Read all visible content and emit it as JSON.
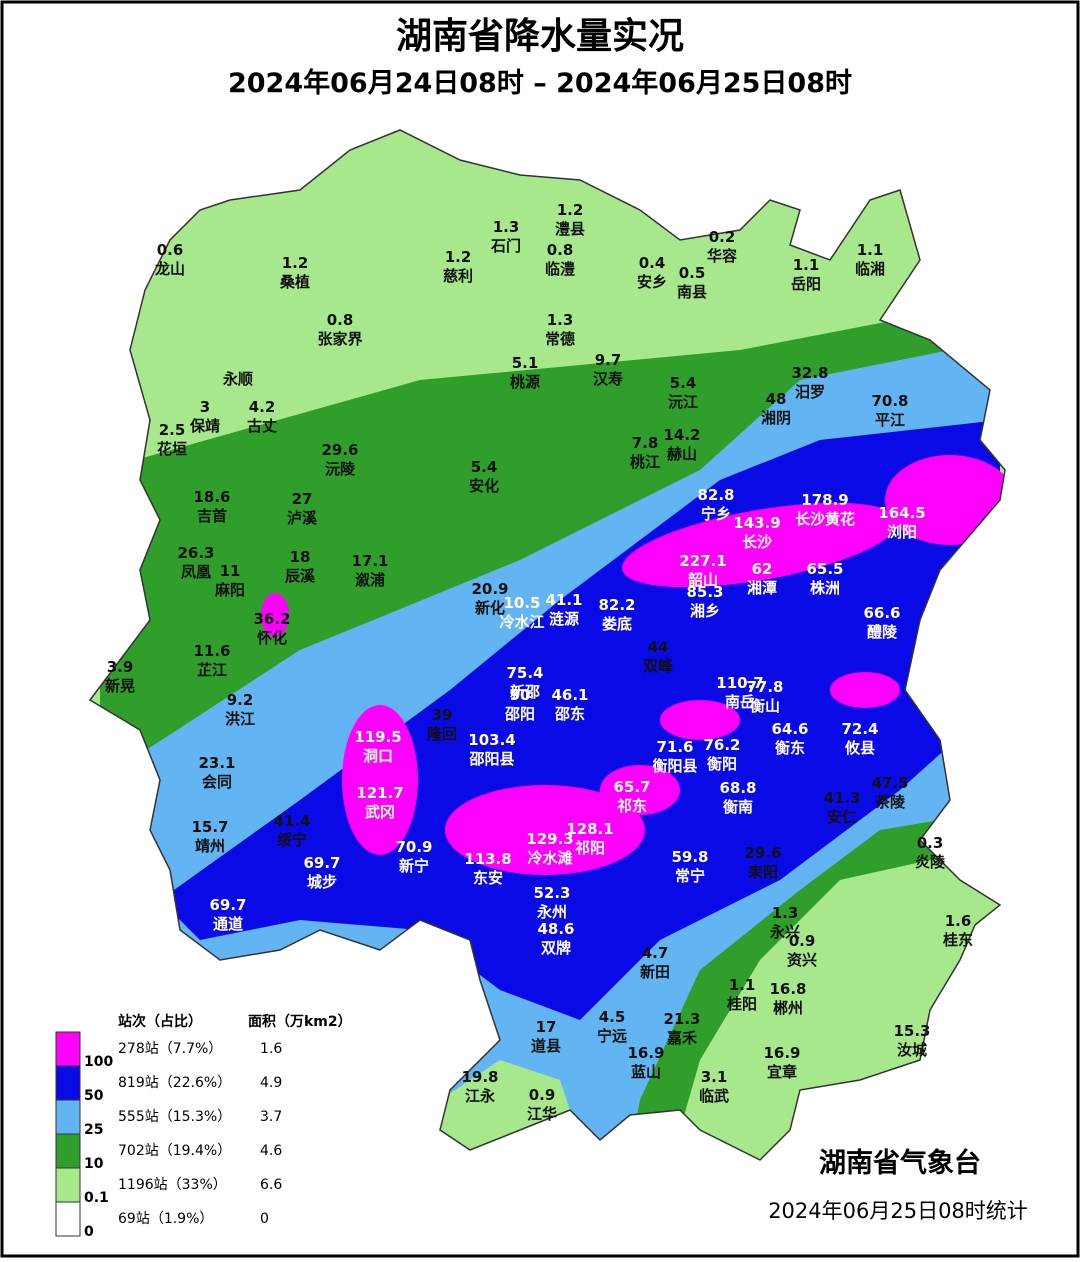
{
  "header": {
    "title": "湖南省降水量实况",
    "subtitle": "2024年06月24日08时 – 2024年06月25日08时"
  },
  "stations": [
    {
      "value": "0.6",
      "name": "龙山"
    },
    {
      "value": "1.2",
      "name": "桑植"
    },
    {
      "value": "1.2",
      "name": "慈利"
    },
    {
      "value": "1.3",
      "name": "石门"
    },
    {
      "value": "1.2",
      "name": "澧县"
    },
    {
      "value": "0.8",
      "name": "临澧"
    },
    {
      "value": "0.4",
      "name": "安乡"
    },
    {
      "value": "0.2",
      "name": "华容"
    },
    {
      "value": "0.5",
      "name": "南县"
    },
    {
      "value": "1.1",
      "name": "岳阳"
    },
    {
      "value": "1.1",
      "name": "临湘"
    },
    {
      "value": "0.8",
      "name": "张家界"
    },
    {
      "value": "1.3",
      "name": "常德"
    },
    {
      "name": "永顺"
    },
    {
      "value": "5.1",
      "name": "桃源"
    },
    {
      "value": "9.7",
      "name": "汉寿"
    },
    {
      "value": "5.4",
      "name": "沅江"
    },
    {
      "value": "32.8",
      "name": "汨罗"
    },
    {
      "value": "48",
      "name": "湘阴"
    },
    {
      "value": "70.8",
      "name": "平江"
    },
    {
      "value": "3",
      "name": "保靖"
    },
    {
      "value": "4.2",
      "name": "古丈"
    },
    {
      "value": "2.5",
      "name": "花垣"
    },
    {
      "value": "29.6",
      "name": "沅陵"
    },
    {
      "value": "7.8",
      "name": "桃江"
    },
    {
      "value": "14.2",
      "name": "赫山"
    },
    {
      "value": "5.4",
      "name": "安化"
    },
    {
      "value": "18.6",
      "name": "吉首"
    },
    {
      "value": "27",
      "name": "泸溪"
    },
    {
      "value": "82.8",
      "name": "宁乡"
    },
    {
      "value": "178.9",
      "name": "长沙黄花"
    },
    {
      "value": "164.5",
      "name": "浏阳"
    },
    {
      "value": "143.9",
      "name": "长沙"
    },
    {
      "value": "26.3",
      "name": "凤凰"
    },
    {
      "value": "11",
      "name": "麻阳"
    },
    {
      "value": "18",
      "name": "辰溪"
    },
    {
      "value": "17.1",
      "name": "溆浦"
    },
    {
      "value": "227.1",
      "name": "韶山"
    },
    {
      "value": "62",
      "name": "湘潭"
    },
    {
      "value": "65.5",
      "name": "株洲"
    },
    {
      "value": "20.9",
      "name": "新化"
    },
    {
      "value": "10.5",
      "name": "冷水江"
    },
    {
      "value": "41.1",
      "name": "涟源"
    },
    {
      "value": "82.2",
      "name": "娄底"
    },
    {
      "value": "85.3",
      "name": "湘乡"
    },
    {
      "value": "36.2",
      "name": "怀化"
    },
    {
      "value": "66.6",
      "name": "醴陵"
    },
    {
      "value": "11.6",
      "name": "芷江"
    },
    {
      "value": "44",
      "name": "双峰"
    },
    {
      "value": "3.9",
      "name": "新晃"
    },
    {
      "value": "75.4",
      "name": "新邵"
    },
    {
      "value": "46.1",
      "name": "邵东"
    },
    {
      "value": "110.7",
      "name": "南岳"
    },
    {
      "value": "77.8",
      "name": "衡山"
    },
    {
      "value": "9.2",
      "name": "洪江"
    },
    {
      "value": "90",
      "name": "邵阳"
    },
    {
      "value": "39",
      "name": "隆回"
    },
    {
      "value": "119.5",
      "name": "洞口"
    },
    {
      "value": "103.4",
      "name": "邵阳县"
    },
    {
      "value": "71.6",
      "name": "衡阳县"
    },
    {
      "value": "76.2",
      "name": "衡阳"
    },
    {
      "value": "64.6",
      "name": "衡东"
    },
    {
      "value": "72.4",
      "name": "攸县"
    },
    {
      "value": "23.1",
      "name": "会同"
    },
    {
      "value": "47.5",
      "name": "茶陵"
    },
    {
      "value": "121.7",
      "name": "武冈"
    },
    {
      "value": "65.7",
      "name": "祁东"
    },
    {
      "value": "68.8",
      "name": "衡南"
    },
    {
      "value": "41.3",
      "name": "安仁"
    },
    {
      "value": "15.7",
      "name": "靖州"
    },
    {
      "value": "41.4",
      "name": "绥宁"
    },
    {
      "value": "129.3",
      "name": "冷水滩"
    },
    {
      "value": "128.1",
      "name": "祁阳"
    },
    {
      "value": "70.9",
      "name": "新宁"
    },
    {
      "value": "0.3",
      "name": "炎陵"
    },
    {
      "value": "69.7",
      "name": "城步"
    },
    {
      "value": "113.8",
      "name": "东安"
    },
    {
      "value": "59.8",
      "name": "常宁"
    },
    {
      "value": "29.6",
      "name": "耒阳"
    },
    {
      "value": "52.3",
      "name": "永州"
    },
    {
      "value": "69.7",
      "name": "通道"
    },
    {
      "value": "1.3",
      "name": "永兴"
    },
    {
      "value": "0.9",
      "name": "资兴"
    },
    {
      "value": "48.6",
      "name": "双牌"
    },
    {
      "value": "1.6",
      "name": "桂东"
    },
    {
      "value": "4.7",
      "name": "新田"
    },
    {
      "value": "1.1",
      "name": "桂阳"
    },
    {
      "value": "16.8",
      "name": "郴州"
    },
    {
      "value": "4.5",
      "name": "宁远"
    },
    {
      "value": "21.3",
      "name": "嘉禾"
    },
    {
      "value": "17",
      "name": "道县"
    },
    {
      "value": "15.3",
      "name": "汝城"
    },
    {
      "value": "16.9",
      "name": "蓝山"
    },
    {
      "value": "16.9",
      "name": "宜章"
    },
    {
      "value": "19.8",
      "name": "江永"
    },
    {
      "value": "0.9",
      "name": "江华"
    },
    {
      "value": "3.1",
      "name": "临武"
    }
  ],
  "legend": {
    "headers": [
      "站次（占比）",
      "面积（万km2）"
    ],
    "thresholds": [
      "100",
      "50",
      "25",
      "10",
      "0.1",
      "0"
    ],
    "rows": [
      {
        "color": "#ff00ff",
        "count": "278站（7.7%）",
        "area": "1.6"
      },
      {
        "color": "#0a0ae6",
        "count": "819站（22.6%）",
        "area": "4.9"
      },
      {
        "color": "#63b4f2",
        "count": "555站（15.3%）",
        "area": "3.7"
      },
      {
        "color": "#2f9e2a",
        "count": "702站（19.4%）",
        "area": "4.6"
      },
      {
        "color": "#a8e88c",
        "count": "1196站（33%）",
        "area": "6.6"
      },
      {
        "color": "#ffffff",
        "count": "69站（1.9%）",
        "area": "0"
      }
    ]
  },
  "footer": {
    "agency": "湖南省气象台",
    "note": "2024年06月25日08时统计"
  }
}
